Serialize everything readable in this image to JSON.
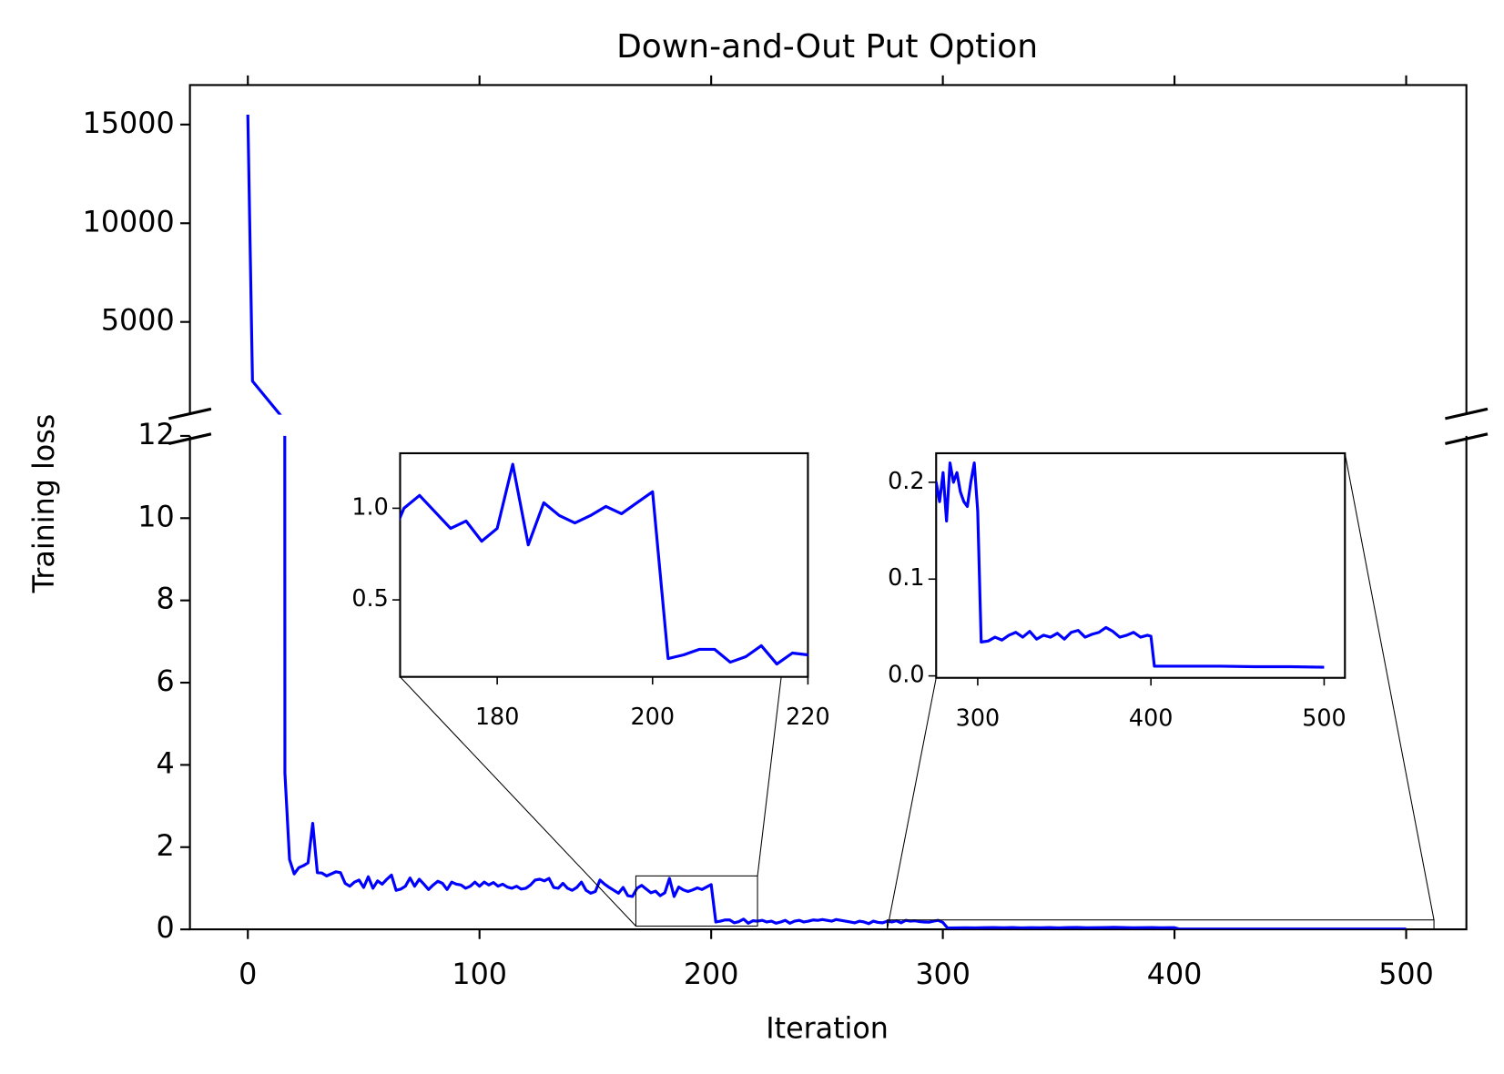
{
  "chart_data": {
    "type": "line",
    "title": "Down-and-Out Put Option",
    "xlabel": "Iteration",
    "ylabel": "Training loss",
    "color": "#0000ff",
    "x": [
      0,
      2,
      16,
      18,
      20,
      22,
      24,
      26,
      28,
      30,
      32,
      34,
      36,
      38,
      40,
      42,
      44,
      46,
      48,
      50,
      52,
      54,
      56,
      58,
      60,
      62,
      64,
      66,
      68,
      70,
      72,
      74,
      76,
      78,
      80,
      82,
      84,
      86,
      88,
      90,
      92,
      94,
      96,
      98,
      100,
      102,
      104,
      106,
      108,
      110,
      112,
      114,
      116,
      118,
      120,
      122,
      124,
      126,
      128,
      130,
      132,
      134,
      136,
      138,
      140,
      142,
      144,
      146,
      148,
      150,
      152,
      154,
      156,
      158,
      160,
      162,
      164,
      166,
      168,
      170,
      172,
      174,
      176,
      178,
      180,
      182,
      184,
      186,
      188,
      190,
      192,
      194,
      196,
      198,
      200,
      202,
      204,
      206,
      208,
      210,
      212,
      214,
      216,
      218,
      220,
      222,
      224,
      226,
      228,
      230,
      232,
      234,
      236,
      238,
      240,
      242,
      244,
      246,
      248,
      250,
      252,
      254,
      256,
      258,
      260,
      262,
      264,
      266,
      268,
      270,
      272,
      274,
      276,
      278,
      280,
      282,
      284,
      286,
      288,
      290,
      292,
      294,
      296,
      298,
      300,
      302,
      306,
      310,
      314,
      318,
      322,
      326,
      330,
      334,
      338,
      342,
      346,
      350,
      354,
      358,
      362,
      366,
      370,
      374,
      378,
      382,
      386,
      390,
      394,
      398,
      400,
      402,
      420,
      440,
      460,
      480,
      500
    ],
    "values": [
      15500,
      2000,
      3.8,
      1.7,
      1.35,
      1.5,
      1.55,
      1.62,
      2.58,
      1.38,
      1.37,
      1.3,
      1.35,
      1.4,
      1.38,
      1.12,
      1.05,
      1.15,
      1.2,
      1.02,
      1.28,
      1.0,
      1.18,
      1.1,
      1.22,
      1.32,
      0.95,
      0.98,
      1.05,
      1.25,
      1.05,
      1.22,
      1.1,
      0.97,
      1.08,
      1.17,
      1.12,
      0.97,
      1.15,
      1.1,
      1.08,
      1.0,
      1.05,
      1.15,
      1.05,
      1.15,
      1.08,
      1.14,
      1.05,
      1.1,
      1.03,
      1.0,
      1.05,
      0.98,
      1.0,
      1.08,
      1.2,
      1.22,
      1.18,
      1.24,
      1.02,
      1.0,
      1.12,
      1.0,
      0.95,
      1.02,
      1.15,
      0.95,
      0.88,
      0.92,
      1.2,
      1.1,
      1.02,
      0.95,
      0.88,
      1.02,
      0.82,
      0.8,
      1.0,
      1.07,
      0.98,
      0.89,
      0.93,
      0.82,
      0.89,
      1.24,
      0.8,
      1.03,
      0.96,
      0.92,
      0.96,
      1.01,
      0.97,
      1.03,
      1.09,
      0.18,
      0.2,
      0.23,
      0.23,
      0.16,
      0.19,
      0.25,
      0.15,
      0.21,
      0.2,
      0.22,
      0.18,
      0.2,
      0.15,
      0.18,
      0.22,
      0.15,
      0.2,
      0.22,
      0.18,
      0.2,
      0.23,
      0.22,
      0.24,
      0.22,
      0.2,
      0.24,
      0.22,
      0.2,
      0.18,
      0.16,
      0.2,
      0.18,
      0.14,
      0.2,
      0.17,
      0.16,
      0.2,
      0.18,
      0.21,
      0.16,
      0.22,
      0.2,
      0.21,
      0.19,
      0.18,
      0.175,
      0.2,
      0.22,
      0.17,
      0.035,
      0.036,
      0.04,
      0.037,
      0.042,
      0.045,
      0.04,
      0.046,
      0.038,
      0.042,
      0.04,
      0.044,
      0.038,
      0.045,
      0.047,
      0.04,
      0.043,
      0.045,
      0.05,
      0.046,
      0.04,
      0.042,
      0.045,
      0.04,
      0.042,
      0.041,
      0.01,
      0.01,
      0.01,
      0.0095,
      0.0095,
      0.009
    ],
    "xlim": [
      -25,
      526
    ],
    "xticks": [
      0,
      100,
      200,
      300,
      400,
      500
    ],
    "panels": [
      {
        "ylim": [
          300,
          17000
        ],
        "yticks": [
          5000,
          10000,
          15000
        ]
      },
      {
        "ylim": [
          0,
          12
        ],
        "yticks": [
          0,
          2,
          4,
          6,
          8,
          10,
          12
        ]
      }
    ],
    "insets": [
      {
        "xlim": [
          167.5,
          220
        ],
        "ylim": [
          0.08,
          1.3
        ],
        "xticks": [
          180,
          200,
          220
        ],
        "yticks": [
          0.5,
          {
            "value": 1,
            "label": "1.0"
          }
        ]
      },
      {
        "xlim": [
          276,
          512
        ],
        "ylim": [
          -0.002,
          0.23
        ],
        "xticks": [
          300,
          400,
          500
        ],
        "yticks": [
          {
            "value": 0,
            "label": "0.0"
          },
          0.1,
          0.2
        ]
      }
    ]
  }
}
